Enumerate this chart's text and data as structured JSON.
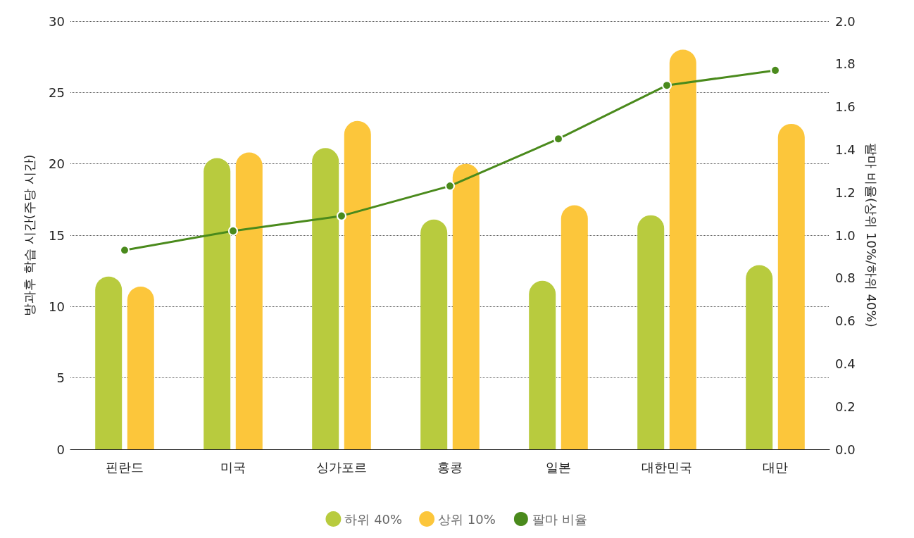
{
  "chart_data": {
    "type": "bar",
    "ylabel": "방과후 학습 시간(주당 시간)",
    "y2label": "팔마 비율(상위 10%/하위 40%)",
    "categories": [
      "핀란드",
      "미국",
      "싱가포르",
      "홍콩",
      "일본",
      "대한민국",
      "대만"
    ],
    "series": [
      {
        "name": "하위 40%",
        "color": "#b8cb3e",
        "values": [
          12.1,
          20.4,
          21.1,
          16.1,
          11.8,
          16.4,
          12.9
        ]
      },
      {
        "name": "상위 10%",
        "color": "#fcc63b",
        "values": [
          11.4,
          20.8,
          23.0,
          20.0,
          17.1,
          28.0,
          22.8
        ]
      },
      {
        "name": "팔마 비율",
        "type": "line",
        "axis": "y2",
        "color": "#4a8a1c",
        "marker": "circle",
        "line_style": "solid",
        "values": [
          0.93,
          1.02,
          1.09,
          1.23,
          1.45,
          1.7,
          1.77
        ]
      }
    ],
    "ylim": [
      0,
      30
    ],
    "yticks": [
      0,
      5,
      10,
      15,
      20,
      25,
      30
    ],
    "y2lim": [
      0,
      2
    ],
    "y2ticks": [
      {
        "value": 0,
        "label": "0.0"
      },
      {
        "value": 0.2,
        "label": "0.2"
      },
      {
        "value": 0.4,
        "label": "0.4"
      },
      {
        "value": 0.6,
        "label": "0.6"
      },
      {
        "value": 0.8,
        "label": "0.8"
      },
      {
        "value": 1,
        "label": "1.0"
      },
      {
        "value": 1.2,
        "label": "1.2"
      },
      {
        "value": 1.4,
        "label": "1.4"
      },
      {
        "value": 1.6,
        "label": "1.6"
      },
      {
        "value": 1.8,
        "label": "1.8"
      },
      {
        "value": 2,
        "label": "2.0"
      }
    ],
    "grid": "y",
    "legend": "bottom"
  }
}
